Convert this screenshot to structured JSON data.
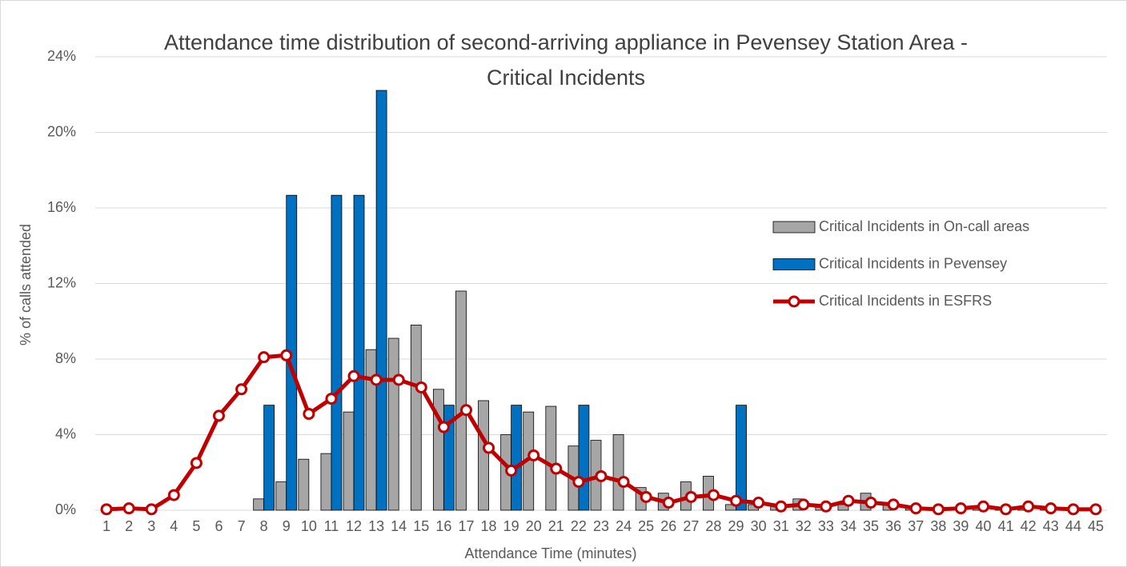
{
  "chart_data": {
    "type": "bar_line",
    "title": "Attendance time distribution of second-arriving appliance in Pevensey Station Area - Critical Incidents",
    "x_label": "Attendance Time (minutes)",
    "y_label": "% of calls attended",
    "categories": [
      "1",
      "2",
      "3",
      "4",
      "5",
      "6",
      "7",
      "8",
      "9",
      "10",
      "11",
      "12",
      "13",
      "14",
      "15",
      "16",
      "17",
      "18",
      "19",
      "20",
      "21",
      "22",
      "23",
      "24",
      "25",
      "26",
      "27",
      "28",
      "29",
      "30",
      "31",
      "32",
      "33",
      "34",
      "35",
      "36",
      "37",
      "38",
      "39",
      "40",
      "41",
      "42",
      "43",
      "44",
      "45"
    ],
    "series": [
      {
        "name": "Critical Incidents in On-call areas",
        "type": "bar",
        "color": "#a6a6a6",
        "values": [
          0,
          0,
          0,
          0,
          0,
          0,
          0,
          0.6,
          1.5,
          2.7,
          3.0,
          5.2,
          8.5,
          9.1,
          9.8,
          6.4,
          11.6,
          5.8,
          4.0,
          5.2,
          5.5,
          3.4,
          3.7,
          4.0,
          1.2,
          0.9,
          1.5,
          1.8,
          0.3,
          0.3,
          0.2,
          0.6,
          0.2,
          0.3,
          0.9,
          0.3,
          0.1,
          0.1,
          0.1,
          0.1,
          0.05,
          0.1,
          0.1,
          0.05,
          0
        ]
      },
      {
        "name": "Critical Incidents in Pevensey",
        "type": "bar",
        "color": "#0070c0",
        "values": [
          0,
          0,
          0,
          0,
          0,
          0,
          0,
          5.56,
          16.67,
          0,
          16.67,
          16.67,
          22.22,
          0,
          0,
          5.56,
          0,
          0,
          5.56,
          0,
          0,
          5.56,
          0,
          0,
          0,
          0,
          0,
          0,
          5.56,
          0,
          0,
          0,
          0,
          0,
          0,
          0,
          0,
          0,
          0,
          0,
          0,
          0,
          0,
          0,
          0
        ]
      },
      {
        "name": "Critical Incidents in ESFRS",
        "type": "line",
        "color": "#c00000",
        "values": [
          0.05,
          0.1,
          0.05,
          0.8,
          2.5,
          5.0,
          6.4,
          8.1,
          8.2,
          5.1,
          5.9,
          7.1,
          6.9,
          6.9,
          6.5,
          4.4,
          5.3,
          3.3,
          2.1,
          2.9,
          2.2,
          1.5,
          1.8,
          1.5,
          0.7,
          0.4,
          0.7,
          0.8,
          0.5,
          0.4,
          0.2,
          0.3,
          0.2,
          0.5,
          0.4,
          0.3,
          0.1,
          0.05,
          0.1,
          0.2,
          0.05,
          0.2,
          0.1,
          0.05,
          0.05
        ]
      }
    ],
    "ylim": [
      0,
      24
    ],
    "yticks": [
      {
        "value": 0,
        "label": "0%"
      },
      {
        "value": 4,
        "label": "4%"
      },
      {
        "value": 8,
        "label": "8%"
      },
      {
        "value": 12,
        "label": "12%"
      },
      {
        "value": 16,
        "label": "16%"
      },
      {
        "value": 20,
        "label": "20%"
      },
      {
        "value": 24,
        "label": "24%"
      }
    ],
    "grid": true,
    "legend": "right"
  }
}
